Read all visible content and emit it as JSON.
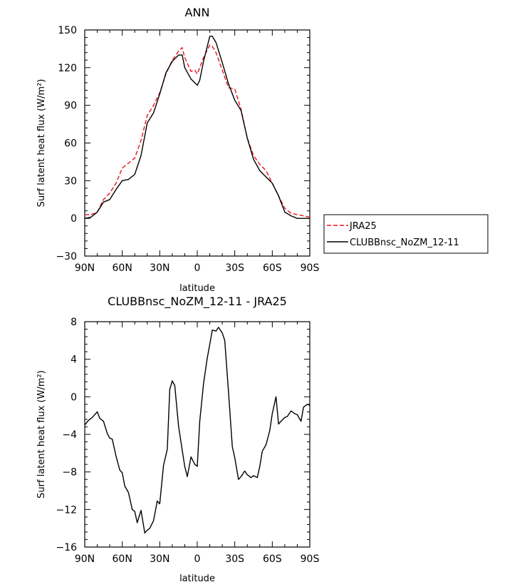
{
  "chart_data": [
    {
      "type": "line",
      "title": "ANN",
      "xlabel": "latitude",
      "ylabel": "Surf latent heat flux (W/m²)",
      "xlim": [
        90,
        -90
      ],
      "ylim": [
        -30,
        150
      ],
      "xticks": [
        {
          "value": 90,
          "label": "90N"
        },
        {
          "value": 60,
          "label": "60N"
        },
        {
          "value": 30,
          "label": "30N"
        },
        {
          "value": 0,
          "label": "0"
        },
        {
          "value": -30,
          "label": "30S"
        },
        {
          "value": -60,
          "label": "60S"
        },
        {
          "value": -90,
          "label": "90S"
        }
      ],
      "yticks": [
        -30,
        0,
        30,
        60,
        90,
        120,
        150
      ],
      "legend": {
        "placement": "right"
      },
      "series": [
        {
          "name": "JRA25",
          "color": "#e8141c",
          "dash": true,
          "x": [
            90,
            85,
            80,
            75,
            70,
            65,
            60,
            55,
            50,
            45,
            40,
            35,
            30,
            25,
            20,
            15,
            12,
            10,
            5,
            2,
            0,
            -2,
            -5,
            -10,
            -12,
            -15,
            -20,
            -25,
            -30,
            -35,
            -40,
            -45,
            -50,
            -55,
            -60,
            -65,
            -70,
            -75,
            -80,
            -85,
            -90
          ],
          "y": [
            3,
            3,
            5,
            15,
            20,
            28,
            40,
            44,
            48,
            62,
            82,
            90,
            100,
            115,
            126,
            133,
            136,
            128,
            117,
            118,
            115,
            120,
            128,
            138,
            137,
            132,
            118,
            104,
            103,
            87,
            64,
            50,
            43,
            38,
            28,
            18,
            8,
            4,
            3,
            2,
            1
          ]
        },
        {
          "name": "CLUBBnsc_NoZM_12-11",
          "color": "#000000",
          "dash": false,
          "x": [
            90,
            85,
            80,
            75,
            70,
            65,
            60,
            55,
            50,
            45,
            40,
            35,
            30,
            25,
            20,
            15,
            12,
            10,
            5,
            2,
            0,
            -2,
            -5,
            -10,
            -12,
            -15,
            -20,
            -25,
            -30,
            -35,
            -40,
            -45,
            -50,
            -55,
            -60,
            -65,
            -70,
            -75,
            -80,
            -85,
            -90
          ],
          "y": [
            0,
            1,
            5,
            13,
            15,
            23,
            30,
            31,
            35,
            50,
            76,
            84,
            99,
            116,
            125,
            130,
            130,
            120,
            111,
            108,
            106,
            110,
            125,
            145,
            145,
            140,
            124,
            107,
            94,
            86,
            64,
            47,
            38,
            33,
            28,
            18,
            5,
            2,
            0,
            0,
            0
          ]
        }
      ]
    },
    {
      "type": "line",
      "title": "CLUBBnsc_NoZM_12-11  -  JRA25",
      "xlabel": "latitude",
      "ylabel": "Surf latent heat flux (W/m²)",
      "xlim": [
        90,
        -90
      ],
      "ylim": [
        -16,
        8
      ],
      "xticks": [
        {
          "value": 90,
          "label": "90N"
        },
        {
          "value": 60,
          "label": "60N"
        },
        {
          "value": 30,
          "label": "30N"
        },
        {
          "value": 0,
          "label": "0"
        },
        {
          "value": -30,
          "label": "30S"
        },
        {
          "value": -60,
          "label": "60S"
        },
        {
          "value": -90,
          "label": "90S"
        }
      ],
      "yticks": [
        -16,
        -12,
        -8,
        -4,
        0,
        4,
        8
      ],
      "series": [
        {
          "color": "#000000",
          "dash": false,
          "x": [
            90,
            87,
            84,
            80,
            78,
            75,
            72,
            70,
            68,
            65,
            62,
            60,
            58,
            55,
            52,
            50,
            48,
            45,
            42,
            40,
            38,
            35,
            32,
            30,
            27,
            24,
            22,
            20,
            18,
            15,
            12,
            10,
            8,
            5,
            2,
            0,
            -2,
            -5,
            -8,
            -10,
            -12,
            -15,
            -17,
            -20,
            -22,
            -25,
            -28,
            -30,
            -33,
            -35,
            -38,
            -40,
            -43,
            -45,
            -48,
            -50,
            -52,
            -55,
            -58,
            -60,
            -63,
            -65,
            -67,
            -70,
            -72,
            -75,
            -78,
            -80,
            -83,
            -85,
            -88,
            -90
          ],
          "y": [
            -3.0,
            -2.5,
            -2.2,
            -1.6,
            -2.3,
            -2.6,
            -3.9,
            -4.4,
            -4.5,
            -6.3,
            -7.8,
            -8.1,
            -9.5,
            -10.2,
            -12.0,
            -12.2,
            -13.4,
            -12.1,
            -14.5,
            -14.2,
            -14.0,
            -13.2,
            -11.1,
            -11.4,
            -7.3,
            -5.6,
            0.8,
            1.7,
            1.2,
            -3.1,
            -5.7,
            -7.4,
            -8.5,
            -6.4,
            -7.2,
            -7.4,
            -2.6,
            1.4,
            4.1,
            5.6,
            7.1,
            7.0,
            7.4,
            6.8,
            6.0,
            0.5,
            -5.3,
            -6.5,
            -8.8,
            -8.5,
            -7.9,
            -8.3,
            -8.6,
            -8.4,
            -8.6,
            -7.4,
            -5.8,
            -5.1,
            -3.6,
            -1.8,
            0.0,
            -2.9,
            -2.6,
            -2.2,
            -2.1,
            -1.5,
            -1.8,
            -1.9,
            -2.6,
            -1.1,
            -0.8,
            -0.9
          ]
        }
      ]
    }
  ]
}
